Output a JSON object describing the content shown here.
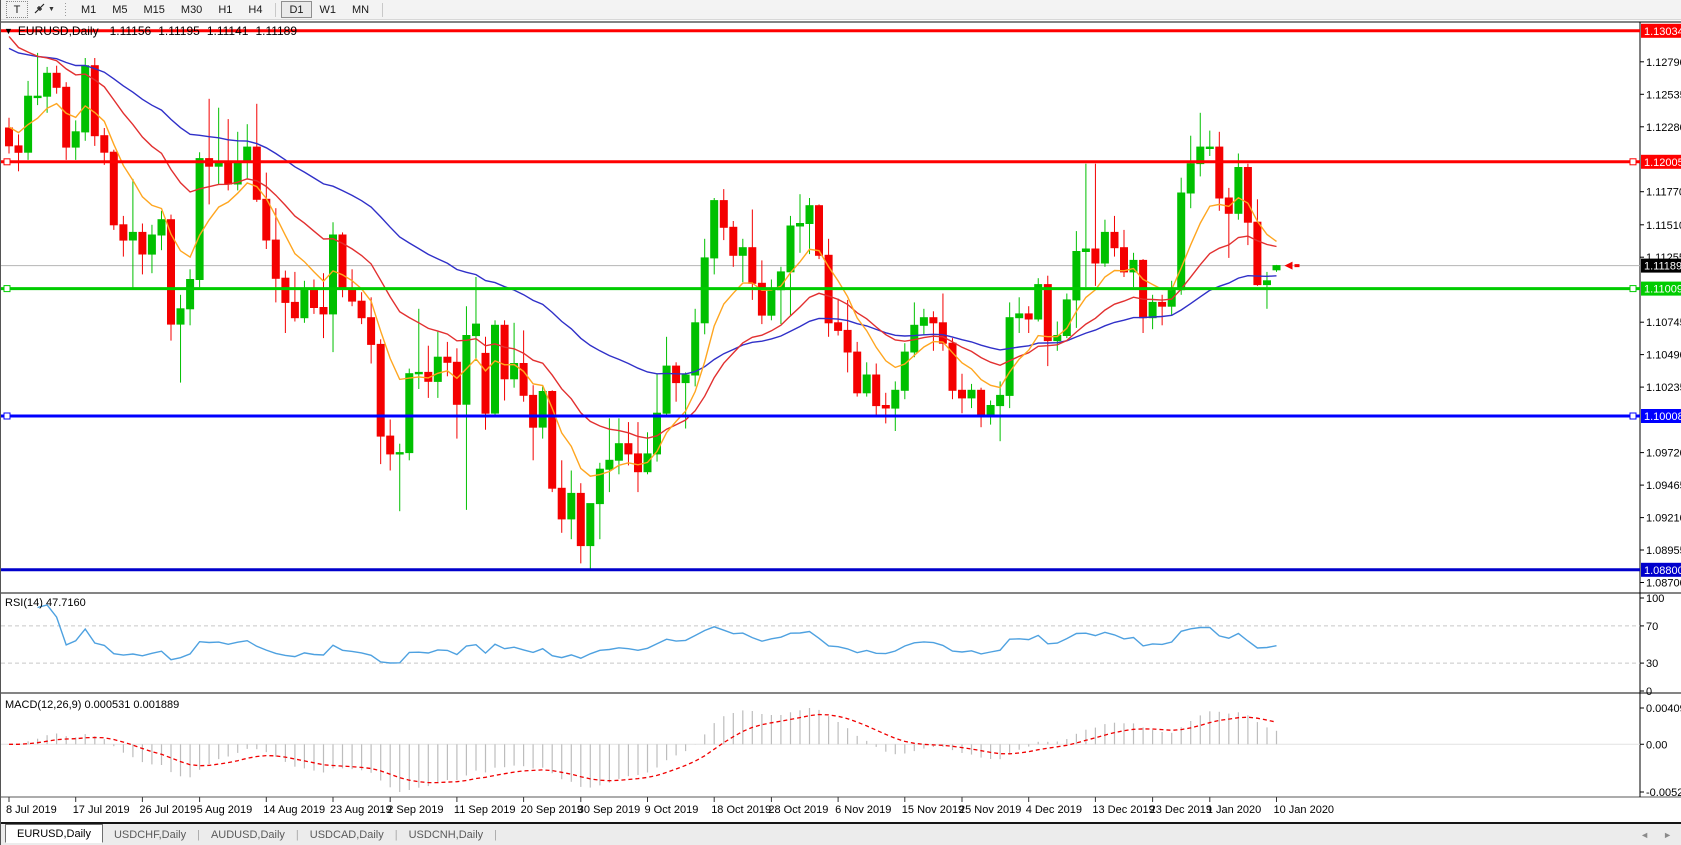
{
  "toolbar": {
    "text_tool_label": "T",
    "timeframes": [
      "M1",
      "M5",
      "M15",
      "M30",
      "H1",
      "H4",
      "D1",
      "W1",
      "MN"
    ],
    "active_timeframe": "D1"
  },
  "chart": {
    "title": "EURUSD,Daily",
    "collapse_arrow": "▼",
    "ohlc": {
      "open": "1.11156",
      "high": "1.11195",
      "low": "1.11141",
      "close": "1.11189"
    }
  },
  "rsi_pane": {
    "label": "RSI(14) 47.7160"
  },
  "macd_pane": {
    "label": "MACD(12,26,9) 0.000531 0.001889"
  },
  "tabs": {
    "items": [
      "EURUSD,Daily",
      "USDCHF,Daily",
      "AUDUSD,Daily",
      "USDCAD,Daily",
      "USDCNH,Daily"
    ],
    "active_index": 0,
    "prev_arrow": "◄",
    "next_arrow": "►"
  },
  "chart_data": {
    "type": "candlestick",
    "symbol": "EURUSD",
    "timeframe": "Daily",
    "colors": {
      "bull": "#00c000",
      "bear": "#f40000",
      "bid_line": "#b4b4b4",
      "axis_text": "#000000",
      "pane_border": "#848484"
    },
    "y_axis": {
      "ticks": [
        "1.12790",
        "1.12535",
        "1.12280",
        "1.11770",
        "1.11510",
        "1.11255",
        "1.10745",
        "1.10490",
        "1.10235",
        "1.09720",
        "1.09465",
        "1.09210",
        "1.08955",
        "1.08700"
      ]
    },
    "levels": [
      {
        "price": 1.13034,
        "label": "1.13034",
        "color": "#ff0000",
        "width": 3,
        "handles": false
      },
      {
        "price": 1.12005,
        "label": "1.12005",
        "color": "#ff0000",
        "width": 3,
        "handles": true
      },
      {
        "price": 1.11009,
        "label": "1.11009",
        "color": "#00cc00",
        "width": 3,
        "handles": true
      },
      {
        "price": 1.10008,
        "label": "1.10008",
        "color": "#0000ff",
        "width": 3,
        "handles": true
      },
      {
        "price": 1.088,
        "label": "1.08800",
        "color": "#0000cc",
        "width": 3,
        "handles": false
      }
    ],
    "current_price": {
      "value": 1.11189,
      "label": "1.11189",
      "chip_bg": "#000000",
      "chip_fg": "#ffffff"
    },
    "moving_averages": [
      {
        "name": "ma-slow",
        "period": 45,
        "color": "#3030c8",
        "seed": 1.1293
      },
      {
        "name": "ma-mid",
        "period": 20,
        "color": "#e23030",
        "seed": 1.1308
      },
      {
        "name": "ma-fast",
        "period": 8,
        "color": "#ffa620",
        "seed": 1.1232
      }
    ],
    "rsi": {
      "period": 14,
      "color": "#4ea1e0",
      "levels": [
        70,
        30
      ],
      "scale": [
        "100",
        "70",
        "30",
        "0"
      ]
    },
    "macd": {
      "fast": 12,
      "slow": 26,
      "signal": 9,
      "hist_color": "#bdbdbd",
      "signal_color": "#f00000",
      "scale_top": "0.004095",
      "scale_zero": "0.00",
      "scale_bottom": "-0.005273"
    },
    "x_labels": [
      {
        "label": "8 Jul 2019",
        "bar": 0
      },
      {
        "label": "17 Jul 2019",
        "bar": 7
      },
      {
        "label": "26 Jul 2019",
        "bar": 14
      },
      {
        "label": "5 Aug 2019",
        "bar": 20
      },
      {
        "label": "14 Aug 2019",
        "bar": 27
      },
      {
        "label": "23 Aug 2019",
        "bar": 34
      },
      {
        "label": "2 Sep 2019",
        "bar": 40
      },
      {
        "label": "11 Sep 2019",
        "bar": 47
      },
      {
        "label": "20 Sep 2019",
        "bar": 54
      },
      {
        "label": "30 Sep 2019",
        "bar": 60
      },
      {
        "label": "9 Oct 2019",
        "bar": 67
      },
      {
        "label": "18 Oct 2019",
        "bar": 74
      },
      {
        "label": "28 Oct 2019",
        "bar": 80
      },
      {
        "label": "6 Nov 2019",
        "bar": 87
      },
      {
        "label": "15 Nov 2019",
        "bar": 94
      },
      {
        "label": "25 Nov 2019",
        "bar": 100
      },
      {
        "label": "4 Dec 2019",
        "bar": 107
      },
      {
        "label": "13 Dec 2019",
        "bar": 114
      },
      {
        "label": "23 Dec 2019",
        "bar": 120
      },
      {
        "label": "1 Jan 2020",
        "bar": 126
      },
      {
        "label": "10 Jan 2020",
        "bar": 133
      }
    ],
    "candles": [
      [
        1.1227,
        1.1235,
        1.1207,
        1.1213
      ],
      [
        1.1213,
        1.1222,
        1.1193,
        1.1208
      ],
      [
        1.1208,
        1.1264,
        1.1202,
        1.1252
      ],
      [
        1.1252,
        1.1286,
        1.1245,
        1.1252
      ],
      [
        1.1252,
        1.1275,
        1.1239,
        1.127
      ],
      [
        1.127,
        1.1276,
        1.1254,
        1.1259
      ],
      [
        1.1259,
        1.1263,
        1.1202,
        1.1212
      ],
      [
        1.1212,
        1.1233,
        1.1202,
        1.1224
      ],
      [
        1.1224,
        1.1282,
        1.1217,
        1.1276
      ],
      [
        1.1276,
        1.1282,
        1.1213,
        1.1221
      ],
      [
        1.1221,
        1.1227,
        1.1198,
        1.1208
      ],
      [
        1.1208,
        1.121,
        1.1147,
        1.1151
      ],
      [
        1.1151,
        1.1158,
        1.1126,
        1.1139
      ],
      [
        1.1139,
        1.1187,
        1.1101,
        1.1145
      ],
      [
        1.1145,
        1.1152,
        1.1112,
        1.1128
      ],
      [
        1.1128,
        1.1151,
        1.1113,
        1.1143
      ],
      [
        1.1143,
        1.1162,
        1.1131,
        1.1155
      ],
      [
        1.1155,
        1.1159,
        1.106,
        1.1073
      ],
      [
        1.1073,
        1.1096,
        1.1027,
        1.1085
      ],
      [
        1.1085,
        1.1116,
        1.1072,
        1.1108
      ],
      [
        1.1108,
        1.1208,
        1.1102,
        1.1203
      ],
      [
        1.1203,
        1.125,
        1.1167,
        1.1197
      ],
      [
        1.1197,
        1.1243,
        1.1183,
        1.12
      ],
      [
        1.12,
        1.1234,
        1.1178,
        1.1183
      ],
      [
        1.1183,
        1.1224,
        1.1178,
        1.12
      ],
      [
        1.12,
        1.123,
        1.1187,
        1.1212
      ],
      [
        1.1212,
        1.1246,
        1.1169,
        1.1171
      ],
      [
        1.1171,
        1.1192,
        1.1132,
        1.1139
      ],
      [
        1.1139,
        1.1164,
        1.109,
        1.1109
      ],
      [
        1.1109,
        1.1115,
        1.1066,
        1.109
      ],
      [
        1.109,
        1.1114,
        1.1075,
        1.1078
      ],
      [
        1.1078,
        1.1107,
        1.1074,
        1.11
      ],
      [
        1.11,
        1.1108,
        1.1081,
        1.1086
      ],
      [
        1.1086,
        1.1113,
        1.1062,
        1.1081
      ],
      [
        1.1081,
        1.1153,
        1.1051,
        1.1143
      ],
      [
        1.1143,
        1.1145,
        1.1094,
        1.1101
      ],
      [
        1.1101,
        1.1116,
        1.1087,
        1.1091
      ],
      [
        1.1091,
        1.1098,
        1.1073,
        1.1078
      ],
      [
        1.1078,
        1.1094,
        1.1042,
        1.1057
      ],
      [
        1.1057,
        1.1061,
        1.0963,
        1.0985
      ],
      [
        1.0985,
        1.0998,
        1.0958,
        1.0971
      ],
      [
        1.0971,
        1.0979,
        1.0926,
        1.0972
      ],
      [
        1.0972,
        1.1038,
        1.0966,
        1.1034
      ],
      [
        1.1034,
        1.1085,
        1.1022,
        1.1035
      ],
      [
        1.1035,
        1.1056,
        1.1015,
        1.1028
      ],
      [
        1.1028,
        1.1067,
        1.1015,
        1.1047
      ],
      [
        1.1047,
        1.1059,
        1.1032,
        1.1043
      ],
      [
        1.1043,
        1.1054,
        1.0983,
        1.101
      ],
      [
        1.101,
        1.1087,
        1.0927,
        1.1064
      ],
      [
        1.1064,
        1.111,
        1.1044,
        1.1073
      ],
      [
        1.105,
        1.1063,
        1.099,
        1.1003
      ],
      [
        1.1003,
        1.1076,
        1.1001,
        1.1072
      ],
      [
        1.1072,
        1.1076,
        1.1013,
        1.103
      ],
      [
        1.103,
        1.1074,
        1.1023,
        1.1042
      ],
      [
        1.1042,
        1.1068,
        1.1012,
        1.1017
      ],
      [
        1.1017,
        1.1025,
        1.0966,
        1.0992
      ],
      [
        1.0992,
        1.1024,
        1.0983,
        1.102
      ],
      [
        1.102,
        1.1021,
        1.0941,
        1.0944
      ],
      [
        1.0944,
        1.0966,
        1.0909,
        1.092
      ],
      [
        1.092,
        1.0958,
        1.0904,
        1.094
      ],
      [
        1.094,
        1.0948,
        1.0885,
        1.0899
      ],
      [
        1.0899,
        1.0925,
        1.0879,
        1.0932
      ],
      [
        1.0932,
        1.0964,
        1.0904,
        1.0959
      ],
      [
        1.0959,
        1.0999,
        1.0941,
        1.0966
      ],
      [
        1.0966,
        1.0999,
        1.0955,
        1.0979
      ],
      [
        1.0979,
        1.0996,
        1.0962,
        1.0971
      ],
      [
        1.0971,
        1.0996,
        1.0941,
        1.0957
      ],
      [
        1.0957,
        1.0988,
        1.0955,
        1.0971
      ],
      [
        1.0971,
        1.1034,
        1.0965,
        1.1003
      ],
      [
        1.1003,
        1.1063,
        1.1002,
        1.104
      ],
      [
        1.104,
        1.1043,
        1.1012,
        1.1027
      ],
      [
        1.1027,
        1.1035,
        1.0991,
        1.1033
      ],
      [
        1.1033,
        1.1085,
        1.1024,
        1.1074
      ],
      [
        1.1074,
        1.114,
        1.1065,
        1.1125
      ],
      [
        1.1125,
        1.1172,
        1.1112,
        1.117
      ],
      [
        1.117,
        1.1179,
        1.1139,
        1.1149
      ],
      [
        1.1149,
        1.1154,
        1.1118,
        1.1127
      ],
      [
        1.1127,
        1.114,
        1.1106,
        1.1133
      ],
      [
        1.1133,
        1.1163,
        1.1092,
        1.1105
      ],
      [
        1.1105,
        1.1123,
        1.1073,
        1.108
      ],
      [
        1.108,
        1.1108,
        1.1076,
        1.11
      ],
      [
        1.11,
        1.1118,
        1.1073,
        1.1114
      ],
      [
        1.1114,
        1.1158,
        1.108,
        1.115
      ],
      [
        1.115,
        1.1175,
        1.1129,
        1.1152
      ],
      [
        1.1152,
        1.1172,
        1.1128,
        1.1166
      ],
      [
        1.1166,
        1.1167,
        1.1124,
        1.1127
      ],
      [
        1.1127,
        1.114,
        1.1063,
        1.1074
      ],
      [
        1.1074,
        1.1093,
        1.1064,
        1.1068
      ],
      [
        1.1068,
        1.1092,
        1.1035,
        1.1051
      ],
      [
        1.1051,
        1.1059,
        1.1016,
        1.1019
      ],
      [
        1.1019,
        1.1043,
        1.1016,
        1.1033
      ],
      [
        1.1033,
        1.1042,
        1.1002,
        1.1009
      ],
      [
        1.1009,
        1.1019,
        1.0995,
        1.1007
      ],
      [
        1.1007,
        1.1028,
        1.0989,
        1.1021
      ],
      [
        1.1021,
        1.1058,
        1.1014,
        1.1051
      ],
      [
        1.1051,
        1.109,
        1.1047,
        1.1072
      ],
      [
        1.1072,
        1.1085,
        1.1064,
        1.1078
      ],
      [
        1.1078,
        1.1083,
        1.1052,
        1.1074
      ],
      [
        1.1074,
        1.1097,
        1.1052,
        1.1058
      ],
      [
        1.1058,
        1.1062,
        1.1014,
        1.1021
      ],
      [
        1.1021,
        1.1034,
        1.1003,
        1.1015
      ],
      [
        1.1015,
        1.1026,
        1.1007,
        1.1021
      ],
      [
        1.1021,
        1.1023,
        1.0992,
        1.1
      ],
      [
        1.1,
        1.1013,
        1.0994,
        1.1009
      ],
      [
        1.1009,
        1.1028,
        1.0981,
        1.1017
      ],
      [
        1.1017,
        1.109,
        1.1007,
        1.1078
      ],
      [
        1.1078,
        1.1094,
        1.1066,
        1.1081
      ],
      [
        1.1081,
        1.1087,
        1.1066,
        1.1077
      ],
      [
        1.1077,
        1.1109,
        1.1075,
        1.1104
      ],
      [
        1.1104,
        1.1111,
        1.104,
        1.106
      ],
      [
        1.106,
        1.1075,
        1.1052,
        1.1064
      ],
      [
        1.1064,
        1.1097,
        1.1062,
        1.1092
      ],
      [
        1.1092,
        1.1146,
        1.107,
        1.113
      ],
      [
        1.113,
        1.1199,
        1.1102,
        1.1132
      ],
      [
        1.1132,
        1.1199,
        1.1103,
        1.1121
      ],
      [
        1.1121,
        1.1155,
        1.1118,
        1.1145
      ],
      [
        1.1145,
        1.1158,
        1.1126,
        1.1133
      ],
      [
        1.1133,
        1.1147,
        1.111,
        1.1114
      ],
      [
        1.1114,
        1.1129,
        1.1102,
        1.1123
      ],
      [
        1.1123,
        1.1124,
        1.1066,
        1.1078
      ],
      [
        1.1078,
        1.1096,
        1.1069,
        1.109
      ],
      [
        1.109,
        1.1096,
        1.1072,
        1.1087
      ],
      [
        1.1087,
        1.1107,
        1.108,
        1.11
      ],
      [
        1.11,
        1.1188,
        1.1096,
        1.1176
      ],
      [
        1.1176,
        1.1221,
        1.1164,
        1.1199
      ],
      [
        1.1199,
        1.1239,
        1.1189,
        1.1212
      ],
      [
        1.1212,
        1.1225,
        1.1205,
        1.1212
      ],
      [
        1.1212,
        1.1224,
        1.1162,
        1.1172
      ],
      [
        1.1172,
        1.118,
        1.1125,
        1.116
      ],
      [
        1.116,
        1.1207,
        1.1155,
        1.1196
      ],
      [
        1.1196,
        1.1199,
        1.1135,
        1.1153
      ],
      [
        1.1153,
        1.1171,
        1.1103,
        1.1104
      ],
      [
        1.1104,
        1.1114,
        1.1085,
        1.1107
      ],
      [
        1.11156,
        1.11195,
        1.11141,
        1.11189
      ]
    ]
  }
}
